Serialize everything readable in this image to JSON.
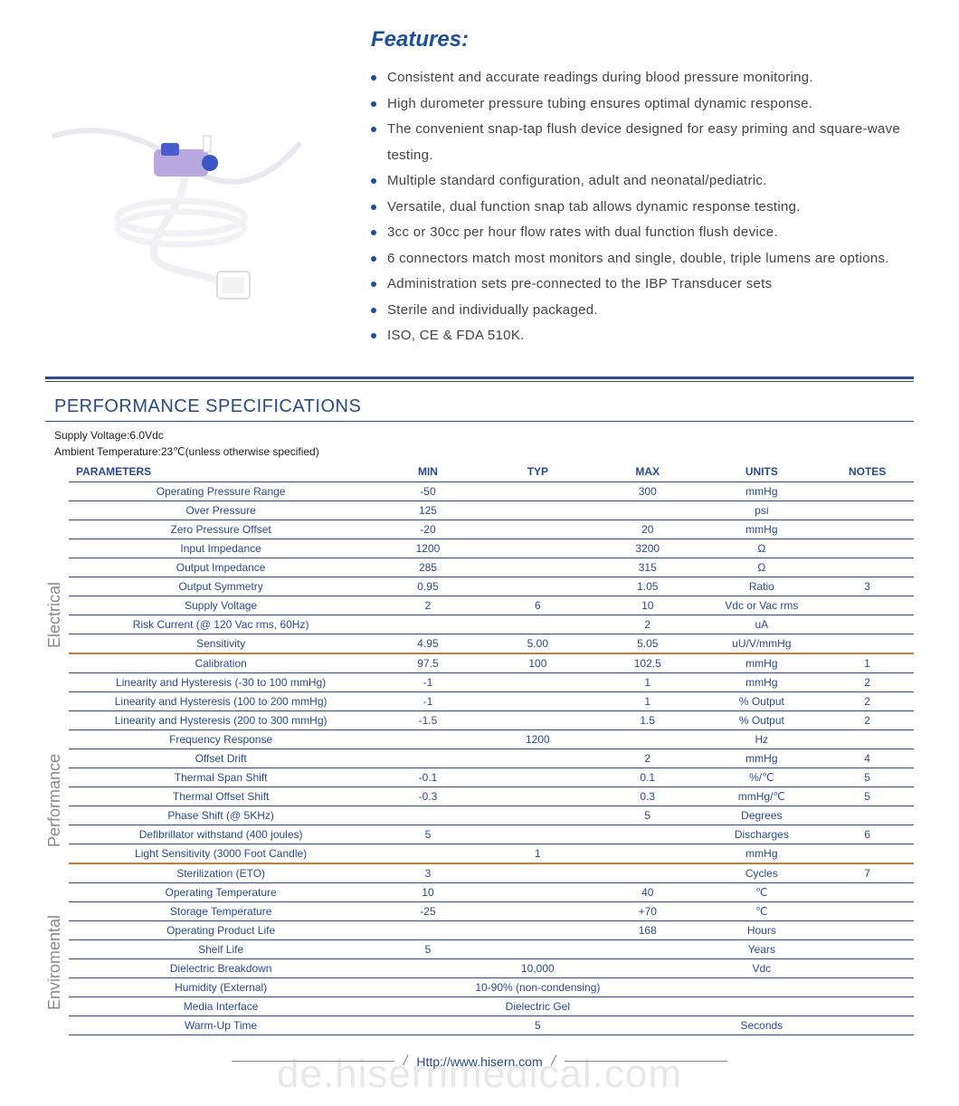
{
  "features": {
    "title": "Features:",
    "items": [
      "Consistent and accurate readings during blood pressure monitoring.",
      "High durometer pressure tubing ensures optimal dynamic response.",
      "The convenient snap-tap flush device designed for easy priming and square-wave testing.",
      "Multiple standard configuration, adult and neonatal/pediatric.",
      "Versatile, dual function snap tab allows dynamic response testing.",
      "3cc or 30cc per hour flow rates with dual function flush device.",
      "6 connectors match most monitors and single, double, triple lumens are options.",
      "Administration sets pre-connected to the IBP Transducer sets",
      "Sterile and individually packaged.",
      "ISO, CE & FDA 510K."
    ]
  },
  "spec": {
    "title": "PERFORMANCE SPECIFICATIONS",
    "conditions": [
      "Supply Voltage:6.0Vdc",
      "Ambient Temperature:23℃(unless otherwise specified)"
    ],
    "columns": [
      "PARAMETERS",
      "MIN",
      "TYP",
      "MAX",
      "UNITS",
      "NOTES"
    ],
    "groups": [
      {
        "label": "Electrical",
        "rows": [
          {
            "param": "Operating Pressure Range",
            "min": "-50",
            "typ": "",
            "max": "300",
            "units": "mmHg",
            "notes": ""
          },
          {
            "param": "Over  Pressure",
            "min": "125",
            "typ": "",
            "max": "",
            "units": "psi",
            "notes": ""
          },
          {
            "param": "Zero Pressure Offset",
            "min": "-20",
            "typ": "",
            "max": "20",
            "units": "mmHg",
            "notes": ""
          },
          {
            "param": "Input Impedance",
            "min": "1200",
            "typ": "",
            "max": "3200",
            "units": "Ω",
            "notes": ""
          },
          {
            "param": "Output Impedance",
            "min": "285",
            "typ": "",
            "max": "315",
            "units": "Ω",
            "notes": ""
          },
          {
            "param": "Output Symmetry",
            "min": "0.95",
            "typ": "",
            "max": "1.05",
            "units": "Ratio",
            "notes": "3"
          },
          {
            "param": "Supply Voltage",
            "min": "2",
            "typ": "6",
            "max": "10",
            "units": "Vdc or Vac rms",
            "notes": ""
          },
          {
            "param": "Risk Current (@ 120 Vac rms, 60Hz)",
            "min": "",
            "typ": "",
            "max": "2",
            "units": "uA",
            "notes": ""
          },
          {
            "param": "Sensitivity",
            "min": "4.95",
            "typ": "5.00",
            "max": "5.05",
            "units": "uU/V/mmHg",
            "notes": ""
          }
        ]
      },
      {
        "label": "Performance",
        "rows": [
          {
            "param": "Calibration",
            "min": "97.5",
            "typ": "100",
            "max": "102.5",
            "units": "mmHg",
            "notes": "1"
          },
          {
            "param": "Linearity and Hysteresis (-30 to 100 mmHg)",
            "min": "-1",
            "typ": "",
            "max": "1",
            "units": "mmHg",
            "notes": "2"
          },
          {
            "param": "Linearity and Hysteresis (100 to 200 mmHg)",
            "min": "-1",
            "typ": "",
            "max": "1",
            "units": "% Output",
            "notes": "2"
          },
          {
            "param": "Linearity and Hysteresis (200 to 300 mmHg)",
            "min": "-1.5",
            "typ": "",
            "max": "1.5",
            "units": "% Output",
            "notes": "2"
          },
          {
            "param": "Frequency Response",
            "min": "",
            "typ": "1200",
            "max": "",
            "units": "Hz",
            "notes": ""
          },
          {
            "param": "Offset Drift",
            "min": "",
            "typ": "",
            "max": "2",
            "units": "mmHg",
            "notes": "4"
          },
          {
            "param": "Thermal Span Shift",
            "min": "-0.1",
            "typ": "",
            "max": "0.1",
            "units": "%/℃",
            "notes": "5"
          },
          {
            "param": "Thermal Offset Shift",
            "min": "-0.3",
            "typ": "",
            "max": "0.3",
            "units": "mmHg/℃",
            "notes": "5"
          },
          {
            "param": "Phase Shift (@ 5KHz)",
            "min": "",
            "typ": "",
            "max": "5",
            "units": "Degrees",
            "notes": ""
          },
          {
            "param": "Defibrillator withstand (400 joules)",
            "min": "5",
            "typ": "",
            "max": "",
            "units": "Discharges",
            "notes": "6"
          },
          {
            "param": "Light Sensitivity (3000 Foot Candle)",
            "min": "",
            "typ": "1",
            "max": "",
            "units": "mmHg",
            "notes": ""
          }
        ]
      },
      {
        "label": "Enviromental",
        "rows": [
          {
            "param": "Sterilization (ETO)",
            "min": "3",
            "typ": "",
            "max": "",
            "units": "Cycles",
            "notes": "7"
          },
          {
            "param": "Operating Temperature",
            "min": "10",
            "typ": "",
            "max": "40",
            "units": "℃",
            "notes": ""
          },
          {
            "param": "Storage Temperature",
            "min": "-25",
            "typ": "",
            "max": "+70",
            "units": "℃",
            "notes": ""
          },
          {
            "param": "Operating Product Life",
            "min": "",
            "typ": "",
            "max": "168",
            "units": "Hours",
            "notes": ""
          },
          {
            "param": "Shelf Life",
            "min": "5",
            "typ": "",
            "max": "",
            "units": "Years",
            "notes": ""
          },
          {
            "param": "Dielectric Breakdown",
            "min": "",
            "typ": "10,000",
            "max": "",
            "units": "Vdc",
            "notes": ""
          },
          {
            "param": "Humidity (External)",
            "wide": "10-90% (non-condensing)",
            "units": "",
            "notes": ""
          },
          {
            "param": "Media Interface",
            "wide": "Dielectric Gel",
            "units": "",
            "notes": ""
          },
          {
            "param": "Warm-Up Time",
            "min": "",
            "typ": "5",
            "max": "",
            "units": "Seconds",
            "notes": ""
          }
        ]
      }
    ]
  },
  "footer": {
    "url": "Http://www.hisern.com"
  },
  "watermark": "de.hisernmedical.com",
  "colors": {
    "primary": "#2b4a8a",
    "accent": "#1b4f9c",
    "section_divider": "#cc7a2e",
    "text": "#333333",
    "side_label": "#8a8a8a",
    "watermark": "rgba(150,150,150,0.22)"
  }
}
